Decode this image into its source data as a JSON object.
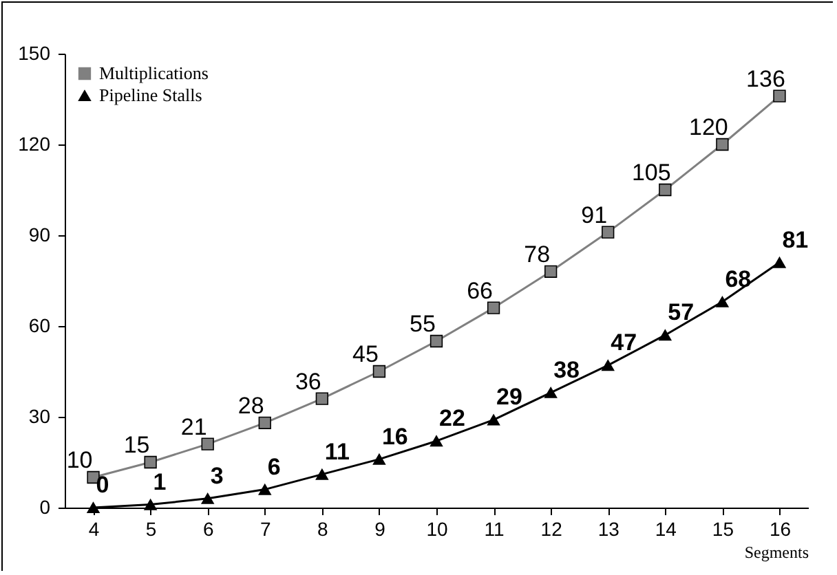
{
  "chart_data": {
    "type": "line",
    "xlabel": "Segments",
    "categories": [
      "4",
      "5",
      "6",
      "7",
      "8",
      "9",
      "10",
      "11",
      "12",
      "13",
      "14",
      "15",
      "16"
    ],
    "series": [
      {
        "name": "Multiplications",
        "color": "#808080",
        "marker": "square",
        "values": [
          10,
          15,
          21,
          28,
          36,
          45,
          55,
          66,
          78,
          91,
          105,
          120,
          136
        ]
      },
      {
        "name": "Pipeline Stalls",
        "color": "#000000",
        "marker": "triangle",
        "values": [
          0,
          1,
          3,
          6,
          11,
          16,
          22,
          29,
          38,
          47,
          57,
          68,
          81
        ]
      }
    ],
    "ylim": [
      0,
      150
    ],
    "yticks": [
      0,
      30,
      60,
      90,
      120,
      150
    ],
    "data_labels": true,
    "legend": "top left",
    "grid": false,
    "line_style": "solid"
  }
}
